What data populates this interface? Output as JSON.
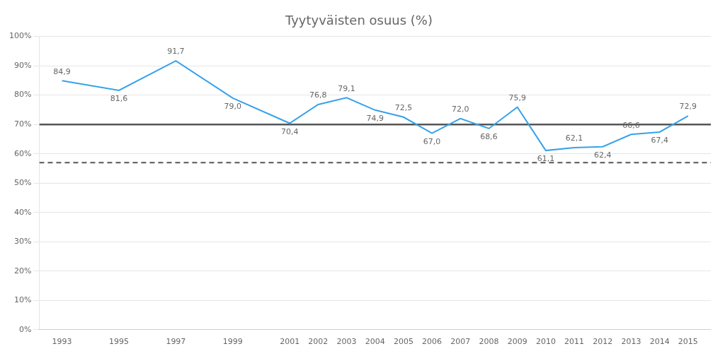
{
  "chart_data": {
    "type": "line",
    "title": "Tyytyväisten osuus (%)",
    "x": [
      1993,
      1995,
      1997,
      1999,
      2001,
      2002,
      2003,
      2004,
      2005,
      2006,
      2007,
      2008,
      2009,
      2010,
      2011,
      2012,
      2013,
      2014,
      2015
    ],
    "values": [
      84.9,
      81.6,
      91.7,
      79.0,
      70.4,
      76.8,
      79.1,
      74.9,
      72.5,
      67.0,
      72.0,
      68.6,
      75.9,
      61.1,
      62.1,
      62.4,
      66.6,
      67.4,
      72.9
    ],
    "value_labels": [
      "84,9",
      "81,6",
      "91,7",
      "79,0",
      "70,4",
      "76,8",
      "79,1",
      "74,9",
      "72,5",
      "67,0",
      "72,0",
      "68,6",
      "75,9",
      "61,1",
      "62,1",
      "62,4",
      "66,6",
      "67,4",
      "72,9"
    ],
    "data_labels": true,
    "reference_lines": [
      {
        "value": 70.0,
        "line_style": "solid"
      },
      {
        "value": 57.0,
        "line_style": "dashed"
      }
    ],
    "xlim": [
      1992.2,
      2015.8
    ],
    "xticks": [
      1993,
      1995,
      1997,
      1999,
      2001,
      2002,
      2003,
      2004,
      2005,
      2006,
      2007,
      2008,
      2009,
      2010,
      2011,
      2012,
      2013,
      2014,
      2015
    ],
    "ylim": [
      0,
      100
    ],
    "yticks": [
      {
        "value": 0,
        "label": "0%"
      },
      {
        "value": 10,
        "label": "10%"
      },
      {
        "value": 20,
        "label": "20%"
      },
      {
        "value": 30,
        "label": "30%"
      },
      {
        "value": 40,
        "label": "40%"
      },
      {
        "value": 50,
        "label": "50%"
      },
      {
        "value": 60,
        "label": "60%"
      },
      {
        "value": 70,
        "label": "70%"
      },
      {
        "value": 80,
        "label": "80%"
      },
      {
        "value": 90,
        "label": "90%"
      },
      {
        "value": 100,
        "label": "100%"
      }
    ],
    "grid": true
  }
}
